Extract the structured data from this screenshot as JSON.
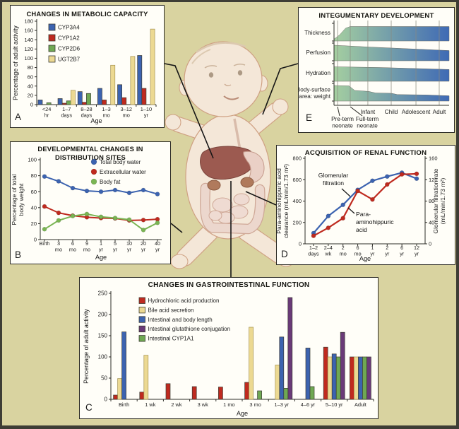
{
  "palette": {
    "background": "#d9d3a0",
    "panel": "#fffef8",
    "frame": "#3e3d35",
    "axis": "#2e2d28",
    "text": "#1c1c1c",
    "grid": "#8a897f",
    "connector": "#161616"
  },
  "baby": {
    "skin": "#f4e7d8",
    "outline": "#cfa183",
    "hair": "#dcc9b0",
    "liver": "#9c5a50",
    "stomach": "#ead0c6",
    "intestine": "#ecd7cd",
    "intestine_edge": "#cfa897",
    "kidney": "#b07a5c"
  },
  "chart_data": [
    {
      "panel": "A",
      "type": "bar",
      "title": "CHANGES IN METABOLIC CAPACITY",
      "ylabel": "Percentage of adult activity",
      "xlabel": "Age",
      "ylim": [
        0,
        180
      ],
      "ytick_step": 20,
      "categories": [
        "<24\nhr",
        "1–7\ndays",
        "8–28\ndays",
        "1–3\nmo",
        "3–12\nmo",
        "1–10\nyr"
      ],
      "series": [
        {
          "name": "CYP3A4",
          "color": "#3c63b0",
          "slot": 0,
          "values": [
            10,
            13,
            28,
            35,
            43,
            106
          ]
        },
        {
          "name": "CYP1A2",
          "color": "#bf2a1f",
          "slot": 1,
          "values": [
            null,
            3,
            5,
            10,
            15,
            35
          ]
        },
        {
          "name": "CYP2D6",
          "color": "#6fa853",
          "slot": 2,
          "values": [
            4,
            8,
            24,
            null,
            null,
            null
          ]
        },
        {
          "name": "UGT2B7",
          "color": "#ecd992",
          "stroke": "#a4914f",
          "slot": 3,
          "values": [
            null,
            31,
            null,
            85,
            104,
            163
          ]
        }
      ],
      "legend_position": "top-left-inside"
    },
    {
      "panel": "B",
      "type": "line",
      "title": "DEVELOPMENTAL CHANGES IN\nDISTRIBUTION SITES",
      "ylabel": "Percentage of total\nbody weight",
      "xlabel": "Age",
      "ylim": [
        0,
        100
      ],
      "ytick_step": 20,
      "categories": [
        "Birth",
        "3\nmo",
        "6\nmo",
        "9\nmo",
        "1\nyr",
        "5\nyr",
        "10\nyr",
        "20\nyr",
        "40\nyr"
      ],
      "series": [
        {
          "name": "Total body water",
          "color": "#3c63b0",
          "values": [
            79,
            73,
            64.5,
            61,
            60,
            62,
            58.5,
            62,
            57
          ]
        },
        {
          "name": "Extracellular water",
          "color": "#bf2a1f",
          "values": [
            41.5,
            33.5,
            30,
            28,
            27,
            26.5,
            24,
            24.5,
            25.5
          ]
        },
        {
          "name": "Body fat",
          "color": "#7ab553",
          "values": [
            13,
            24,
            29.5,
            32,
            28.5,
            27,
            25,
            12,
            21
          ]
        }
      ],
      "legend_position": "top-right-inside"
    },
    {
      "panel": "C",
      "type": "bar",
      "title": "CHANGES IN GASTROINTESTINAL FUNCTION",
      "ylabel": "Percentage of adult activity",
      "xlabel": "Age",
      "ylim": [
        0,
        250
      ],
      "ytick_step": 50,
      "categories": [
        "Birth",
        "1 wk",
        "2 wk",
        "3 wk",
        "1 mo",
        "3 mo",
        "1–3 yr",
        "4–6 yr",
        "5–10 yr",
        "Adult"
      ],
      "series": [
        {
          "name": "Hydrochloric acid production",
          "color": "#bf2a1f",
          "slot": 0,
          "values": [
            10,
            17,
            37,
            30,
            29,
            40,
            null,
            null,
            123,
            100
          ]
        },
        {
          "name": "Bile acid secretion",
          "color": "#ecd992",
          "stroke": "#a4914f",
          "slot": 1,
          "values": [
            49,
            104,
            null,
            null,
            null,
            170,
            81,
            null,
            100,
            100
          ]
        },
        {
          "name": "Intestinal and body length",
          "color": "#3c63b0",
          "slot": 2,
          "values": [
            159,
            null,
            null,
            null,
            null,
            null,
            147,
            121,
            107,
            100
          ]
        },
        {
          "name": "Intestinal glutathione conjugation",
          "color": "#6a3a78",
          "slot": 4,
          "values": [
            null,
            null,
            null,
            null,
            null,
            null,
            240,
            null,
            158,
            100
          ]
        },
        {
          "name": "Intestinal CYP1A1",
          "color": "#6fa853",
          "slot": 3,
          "values": [
            null,
            null,
            null,
            null,
            null,
            20,
            26,
            30,
            100,
            100
          ]
        }
      ],
      "legend_position": "top-left-inside"
    },
    {
      "panel": "D",
      "type": "line",
      "title": "ACQUISITION OF RENAL FUNCTION",
      "ylabel_left": "Para-aminohippuric acid\nclearance (mL/min/1.73 m²)",
      "ylabel_right": "Glomerular filtration rate\n(mL/min/1.73 m²)",
      "xlabel": "Age",
      "ylim_left": [
        0,
        800
      ],
      "ytick_step_left": 200,
      "ylim_right": [
        0,
        160
      ],
      "ytick_step_right": 40,
      "categories": [
        "1–2\ndays",
        "2–4\nwk",
        "2\nmo",
        "6\nmo",
        "1\nyr",
        "2\nyr",
        "6\nyr",
        "12\nyr"
      ],
      "series": [
        {
          "name": "Glomerular filtration",
          "color": "#3c63b0",
          "axis": "right",
          "values": [
            20,
            52,
            73,
            101,
            118,
            126,
            133,
            122
          ]
        },
        {
          "name": "Para-aminohippuric acid",
          "color": "#bf2a1f",
          "axis": "left",
          "values": [
            75,
            150,
            240,
            495,
            415,
            555,
            650,
            655
          ]
        }
      ],
      "annotations": [
        {
          "text": "Glomerular\nfiltration"
        },
        {
          "text": "Para-\naminohippuric\nacid"
        }
      ]
    },
    {
      "panel": "E",
      "type": "area-bands",
      "title": "INTEGUMENTARY DEVELOPMENT",
      "categories": [
        "Pre-term\nneonate",
        "Full-term\nneonate",
        "Infant",
        "Child",
        "Adolescent",
        "Adult"
      ],
      "gradient": {
        "from": "#a5cfa0",
        "to": "#3f6ab5"
      },
      "rows": [
        {
          "label": "Thickness",
          "profile": [
            [
              0,
              0.1
            ],
            [
              0.05,
              0.35
            ],
            [
              0.1,
              0.72
            ],
            [
              0.14,
              0.82
            ],
            [
              1,
              0.82
            ]
          ]
        },
        {
          "label": "Perfusion",
          "profile": [
            [
              0,
              0.88
            ],
            [
              0.3,
              0.78
            ],
            [
              0.65,
              0.68
            ],
            [
              1,
              0.58
            ]
          ]
        },
        {
          "label": "Hydration",
          "profile": [
            [
              0,
              0.82
            ],
            [
              0.4,
              0.78
            ],
            [
              1,
              0.67
            ]
          ]
        },
        {
          "label": "Body-surface\narea: weight",
          "profile": [
            [
              0,
              0.88
            ],
            [
              0.13,
              0.86
            ],
            [
              0.18,
              0.6
            ],
            [
              0.3,
              0.55
            ],
            [
              0.36,
              0.46
            ],
            [
              0.5,
              0.44
            ],
            [
              0.55,
              0.37
            ],
            [
              0.8,
              0.35
            ],
            [
              1,
              0.3
            ]
          ]
        }
      ]
    }
  ]
}
